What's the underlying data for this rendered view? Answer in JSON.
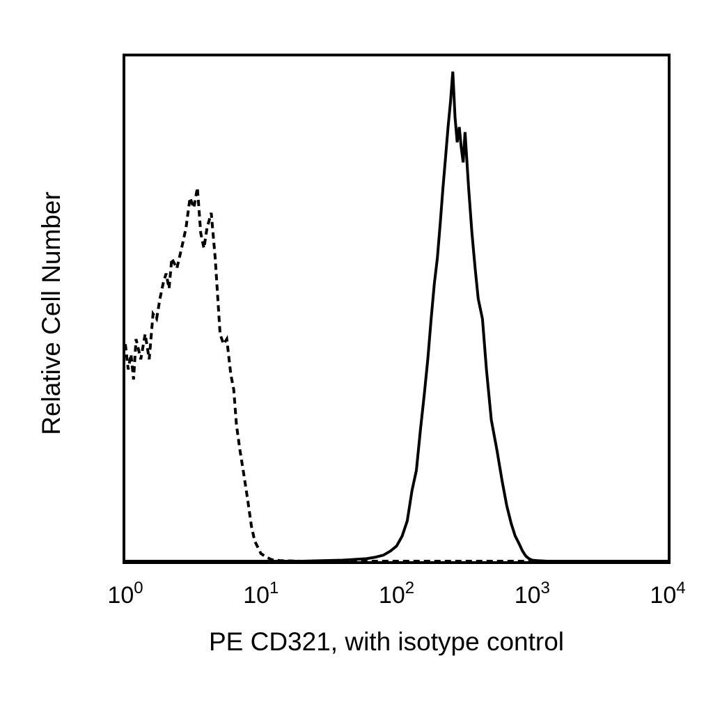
{
  "chart_data": {
    "type": "line",
    "xlabel": "PE CD321, with isotype control",
    "ylabel": "Relative Cell Number",
    "x_scale": "log",
    "xlim": [
      1,
      10000
    ],
    "ylim": [
      0,
      1
    ],
    "grid": false,
    "x_ticks": [
      {
        "value": 1,
        "base": "10",
        "exp": "0"
      },
      {
        "value": 10,
        "base": "10",
        "exp": "1"
      },
      {
        "value": 100,
        "base": "10",
        "exp": "2"
      },
      {
        "value": 1000,
        "base": "10",
        "exp": "3"
      },
      {
        "value": 10000,
        "base": "10",
        "exp": "4"
      }
    ],
    "series": [
      {
        "style": "dashed",
        "color": "#000000",
        "x": [
          1.0,
          1.05,
          1.1,
          1.15,
          1.2,
          1.3,
          1.4,
          1.5,
          1.6,
          1.7,
          1.8,
          1.9,
          2.0,
          2.1,
          2.2,
          2.4,
          2.6,
          2.8,
          3.0,
          3.2,
          3.4,
          3.6,
          3.8,
          4.0,
          4.3,
          4.6,
          5.0,
          5.3,
          5.6,
          6.0,
          6.3,
          6.6,
          7.0,
          7.5,
          8.0,
          8.5,
          9.0,
          10.0,
          11.0,
          12.0,
          14.0,
          20.0,
          40.0,
          60.0,
          80.0,
          100.0,
          200.0,
          400.0,
          1000.0,
          10000.0
        ],
        "y": [
          0.43,
          0.38,
          0.41,
          0.36,
          0.44,
          0.4,
          0.45,
          0.4,
          0.49,
          0.48,
          0.52,
          0.55,
          0.57,
          0.54,
          0.6,
          0.58,
          0.62,
          0.66,
          0.72,
          0.7,
          0.74,
          0.65,
          0.62,
          0.66,
          0.69,
          0.6,
          0.45,
          0.43,
          0.44,
          0.37,
          0.34,
          0.27,
          0.22,
          0.17,
          0.12,
          0.07,
          0.04,
          0.015,
          0.008,
          0.003,
          0.001,
          0.0,
          0.0,
          0.0,
          0.0,
          0.0,
          0.0,
          0.0,
          0.0,
          0.0
        ]
      },
      {
        "style": "solid",
        "color": "#000000",
        "x": [
          1.0,
          20.0,
          40.0,
          60.0,
          70.0,
          80.0,
          90.0,
          100.0,
          110.0,
          120.0,
          130.0,
          140.0,
          150.0,
          160.0,
          170.0,
          180.0,
          190.0,
          200.0,
          210.0,
          220.0,
          230.0,
          240.0,
          250.0,
          260.0,
          270.0,
          280.0,
          290.0,
          300.0,
          310.0,
          320.0,
          340.0,
          360.0,
          380.0,
          400.0,
          430.0,
          460.0,
          500.0,
          550.0,
          600.0,
          650.0,
          700.0,
          750.0,
          800.0,
          850.0,
          900.0,
          950.0,
          1000.0,
          1100.0,
          1300.0,
          10000.0
        ],
        "y": [
          0.0,
          0.0,
          0.002,
          0.005,
          0.008,
          0.012,
          0.02,
          0.03,
          0.05,
          0.08,
          0.14,
          0.18,
          0.26,
          0.33,
          0.4,
          0.48,
          0.55,
          0.6,
          0.67,
          0.74,
          0.8,
          0.86,
          0.91,
          0.97,
          0.88,
          0.83,
          0.86,
          0.82,
          0.79,
          0.85,
          0.74,
          0.65,
          0.58,
          0.52,
          0.48,
          0.38,
          0.28,
          0.22,
          0.16,
          0.11,
          0.075,
          0.05,
          0.035,
          0.02,
          0.01,
          0.005,
          0.002,
          0.001,
          0.0,
          0.0
        ]
      }
    ]
  }
}
